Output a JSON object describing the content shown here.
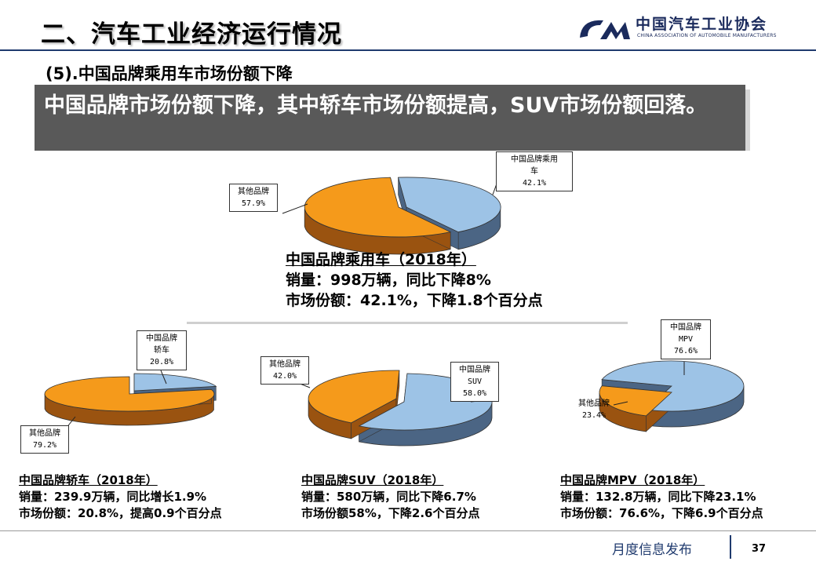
{
  "header": {
    "title": "二、汽车工业经济运行情况",
    "logo_cn": "中国汽车工业协会",
    "logo_en": "CHINA ASSOCIATION OF AUTOMOBILE MANUFACTURERS"
  },
  "subtitle": "(5).中国品牌乘用车市场份额下降",
  "banner": "中国品牌市场份额下降，其中轿车市场份额提高，SUV市场份额回落。",
  "colors": {
    "blue": "#9dc3e6",
    "blue_side": "#4b6584",
    "orange": "#f59a1b",
    "orange_side": "#9a5310",
    "banner_bg": "#595959"
  },
  "chart_data": [
    {
      "type": "pie",
      "title": "中国品牌乘用车（2018年）",
      "slices": [
        {
          "label": "中国品牌乘用车",
          "value": 42.1,
          "display": "42.1%"
        },
        {
          "label": "其他品牌",
          "value": 57.9,
          "display": "57.9%"
        }
      ],
      "notes": [
        "销量：998万辆，同比下降8%",
        "市场份额：42.1%，下降1.8个百分点"
      ]
    },
    {
      "type": "pie",
      "title": "中国品牌轿车（2018年）",
      "slices": [
        {
          "label": "中国品牌轿车",
          "value": 20.8,
          "display": "20.8%"
        },
        {
          "label": "其他品牌",
          "value": 79.2,
          "display": "79.2%"
        }
      ],
      "notes": [
        "销量：239.9万辆，同比增长1.9%",
        "市场份额：20.8%，提高0.9个百分点"
      ]
    },
    {
      "type": "pie",
      "title": "中国品牌SUV（2018年）",
      "slices": [
        {
          "label": "中国品牌SUV",
          "value": 58.0,
          "display": "58.0%"
        },
        {
          "label": "其他品牌",
          "value": 42.0,
          "display": "42.0%"
        }
      ],
      "notes": [
        "销量：580万辆，同比下降6.7%",
        "市场份额58%，下降2.6个百分点"
      ]
    },
    {
      "type": "pie",
      "title": "中国品牌MPV（2018年）",
      "slices": [
        {
          "label": "中国品牌MPV",
          "value": 76.6,
          "display": "76.6%"
        },
        {
          "label": "其他品牌",
          "value": 23.4,
          "display": "23.4%"
        }
      ],
      "notes": [
        "销量：132.8万辆，同比下降23.1%",
        "市场份额：76.6%，下降6.9个百分点"
      ]
    }
  ],
  "labels": {
    "c1_cn": [
      "中国品牌乘用",
      "车",
      "42.1%"
    ],
    "c1_other": [
      "其他品牌",
      "57.9%"
    ],
    "c2_cn": [
      "中国品牌",
      "轿车",
      "20.8%"
    ],
    "c2_other": [
      "其他品牌",
      "79.2%"
    ],
    "c3_cn": [
      "中国品牌",
      "SUV",
      "58.0%"
    ],
    "c3_other": [
      "其他品牌",
      "42.0%"
    ],
    "c4_cn": [
      "中国品牌",
      "MPV",
      "76.6%"
    ],
    "c4_other": [
      "其他品牌",
      "23.4%"
    ]
  },
  "footer": {
    "text": "月度信息发布",
    "page": "37"
  }
}
